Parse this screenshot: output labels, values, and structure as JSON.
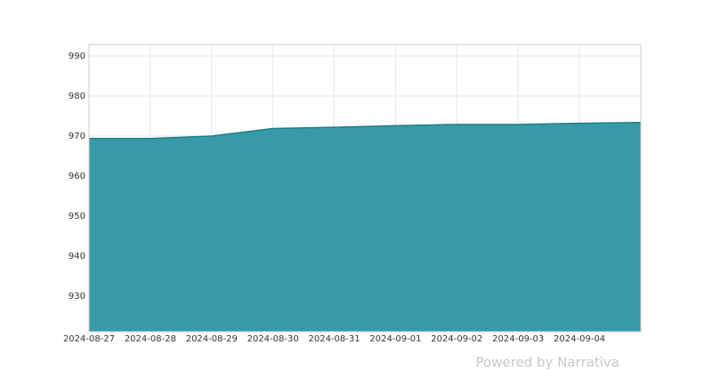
{
  "chart_data": {
    "type": "area",
    "x": [
      "2024-08-27",
      "2024-08-28",
      "2024-08-29",
      "2024-08-30",
      "2024-08-31",
      "2024-09-01",
      "2024-09-02",
      "2024-09-03",
      "2024-09-04",
      "2024-09-05"
    ],
    "values": [
      969.4,
      969.4,
      970.0,
      971.9,
      972.2,
      972.6,
      972.9,
      972.9,
      973.2,
      973.4
    ],
    "color": "#3598a5",
    "line_color": "#1f7f86",
    "ylim": [
      921.1,
      992.9
    ],
    "yticks": [
      930,
      940,
      950,
      960,
      970,
      980,
      990
    ],
    "xticks": [
      "2024-08-27",
      "2024-08-28",
      "2024-08-29",
      "2024-08-30",
      "2024-08-31",
      "2024-09-01",
      "2024-09-02",
      "2024-09-03",
      "2024-09-04"
    ],
    "grid": true
  },
  "footer": "Powered by Narrativa"
}
